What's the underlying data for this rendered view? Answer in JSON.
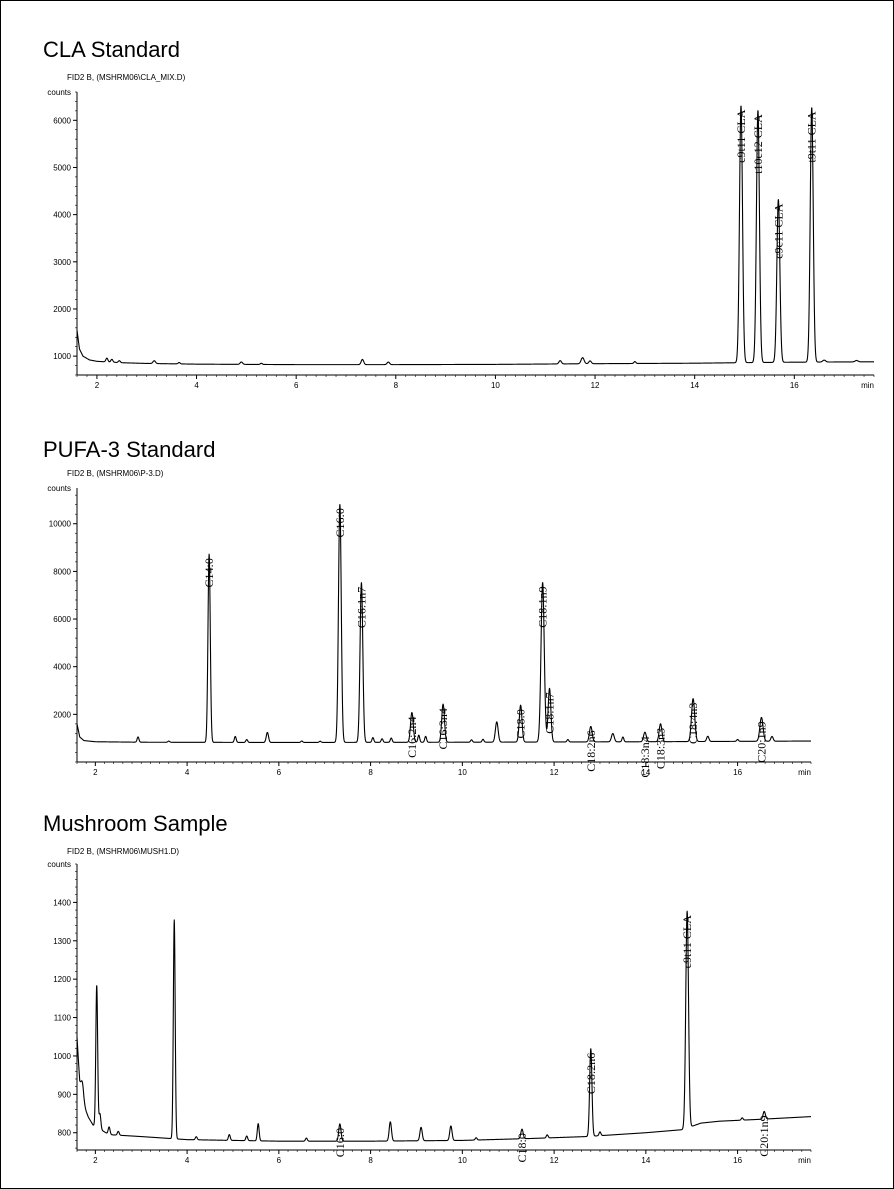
{
  "chart_data": [
    {
      "type": "line",
      "title": "CLA Standard",
      "subtitle": "FID2 B,  (MSHRM06\\CLA_MIX.D)",
      "ylabel": "counts",
      "xlabel": "min",
      "xlim": [
        1.6,
        17.6
      ],
      "ylim": [
        600,
        6600
      ],
      "xticks": [
        2,
        4,
        6,
        8,
        10,
        12,
        14,
        16
      ],
      "yticks": [
        1000,
        2000,
        3000,
        4000,
        5000,
        6000
      ],
      "baseline": [
        [
          1.6,
          1550
        ],
        [
          1.65,
          1150
        ],
        [
          1.72,
          1000
        ],
        [
          1.85,
          920
        ],
        [
          2.0,
          890
        ],
        [
          2.5,
          860
        ],
        [
          3.0,
          845
        ],
        [
          4.0,
          830
        ],
        [
          6.0,
          820
        ],
        [
          8.0,
          820
        ],
        [
          10.0,
          825
        ],
        [
          12.0,
          840
        ],
        [
          14.0,
          850
        ],
        [
          14.85,
          860
        ],
        [
          15.8,
          870
        ],
        [
          16.6,
          875
        ],
        [
          17.6,
          880
        ]
      ],
      "peaks": [
        {
          "rt": 2.2,
          "h": 80,
          "w": 0.02
        },
        {
          "rt": 2.3,
          "h": 60,
          "w": 0.02
        },
        {
          "rt": 2.45,
          "h": 40,
          "w": 0.02
        },
        {
          "rt": 3.15,
          "h": 60,
          "w": 0.025
        },
        {
          "rt": 3.65,
          "h": 30,
          "w": 0.02
        },
        {
          "rt": 4.9,
          "h": 50,
          "w": 0.025
        },
        {
          "rt": 5.3,
          "h": 25,
          "w": 0.02
        },
        {
          "rt": 7.33,
          "h": 110,
          "w": 0.025
        },
        {
          "rt": 7.85,
          "h": 55,
          "w": 0.025
        },
        {
          "rt": 11.3,
          "h": 70,
          "w": 0.025
        },
        {
          "rt": 11.75,
          "h": 130,
          "w": 0.03
        },
        {
          "rt": 11.9,
          "h": 60,
          "w": 0.025
        },
        {
          "rt": 12.8,
          "h": 40,
          "w": 0.02
        },
        {
          "rt": 14.93,
          "h": 5450,
          "w": 0.03,
          "label": "c9t11 CLA"
        },
        {
          "rt": 15.27,
          "h": 5350,
          "w": 0.03,
          "label": "t10c12 CLA"
        },
        {
          "rt": 15.68,
          "h": 3450,
          "w": 0.03,
          "label": "c9c11 CLA"
        },
        {
          "rt": 16.35,
          "h": 5400,
          "w": 0.03,
          "label": "t9t11 CLA"
        },
        {
          "rt": 16.6,
          "h": 40,
          "w": 0.03
        },
        {
          "rt": 17.25,
          "h": 30,
          "w": 0.03
        }
      ]
    },
    {
      "type": "line",
      "title": "PUFA-3 Standard",
      "subtitle": "FID2 B,  (MSHRM06\\P-3.D)",
      "ylabel": "counts",
      "xlabel": "min",
      "xlim": [
        1.6,
        17.6
      ],
      "ylim": [
        0,
        11500
      ],
      "xticks": [
        2,
        4,
        6,
        8,
        10,
        12,
        14,
        16
      ],
      "yticks": [
        2000,
        4000,
        6000,
        8000,
        10000
      ],
      "baseline": [
        [
          1.6,
          1600
        ],
        [
          1.66,
          1050
        ],
        [
          1.75,
          900
        ],
        [
          2.0,
          850
        ],
        [
          3.0,
          830
        ],
        [
          6.0,
          820
        ],
        [
          10.0,
          830
        ],
        [
          14.0,
          850
        ],
        [
          17.6,
          880
        ]
      ],
      "peaks": [
        {
          "rt": 2.93,
          "h": 220,
          "w": 0.02
        },
        {
          "rt": 3.6,
          "h": 50,
          "w": 0.02
        },
        {
          "rt": 4.48,
          "h": 7900,
          "w": 0.025,
          "label": "C14:0"
        },
        {
          "rt": 5.05,
          "h": 250,
          "w": 0.02
        },
        {
          "rt": 5.3,
          "h": 120,
          "w": 0.02
        },
        {
          "rt": 5.75,
          "h": 420,
          "w": 0.025
        },
        {
          "rt": 6.5,
          "h": 60,
          "w": 0.02
        },
        {
          "rt": 6.9,
          "h": 50,
          "w": 0.02
        },
        {
          "rt": 7.33,
          "h": 10000,
          "w": 0.03,
          "label": "C16:0"
        },
        {
          "rt": 7.8,
          "h": 6700,
          "w": 0.03,
          "label": "C16:1n7"
        },
        {
          "rt": 8.05,
          "h": 200,
          "w": 0.02
        },
        {
          "rt": 8.25,
          "h": 150,
          "w": 0.02
        },
        {
          "rt": 8.45,
          "h": 180,
          "w": 0.02
        },
        {
          "rt": 8.9,
          "h": 1250,
          "w": 0.03,
          "label": "C16:2n4"
        },
        {
          "rt": 9.05,
          "h": 300,
          "w": 0.02
        },
        {
          "rt": 9.2,
          "h": 250,
          "w": 0.02
        },
        {
          "rt": 9.58,
          "h": 1600,
          "w": 0.03,
          "label": "C16:3n4"
        },
        {
          "rt": 10.2,
          "h": 100,
          "w": 0.02
        },
        {
          "rt": 10.45,
          "h": 120,
          "w": 0.02
        },
        {
          "rt": 10.75,
          "h": 850,
          "w": 0.03
        },
        {
          "rt": 11.27,
          "h": 1550,
          "w": 0.03,
          "label": "C18:0"
        },
        {
          "rt": 11.75,
          "h": 6700,
          "w": 0.035,
          "label": "C18:1n9"
        },
        {
          "rt": 11.9,
          "h": 2250,
          "w": 0.03,
          "label": "C18:1n7"
        },
        {
          "rt": 12.3,
          "h": 100,
          "w": 0.02
        },
        {
          "rt": 12.8,
          "h": 650,
          "w": 0.03,
          "label": "C18:2n6"
        },
        {
          "rt": 13.28,
          "h": 350,
          "w": 0.03
        },
        {
          "rt": 13.5,
          "h": 200,
          "w": 0.02
        },
        {
          "rt": 13.98,
          "h": 400,
          "w": 0.03,
          "label": "C18:3n4"
        },
        {
          "rt": 14.32,
          "h": 750,
          "w": 0.03,
          "label": "C18:3n3"
        },
        {
          "rt": 15.03,
          "h": 1800,
          "w": 0.035,
          "label": "C18:4n3"
        },
        {
          "rt": 15.35,
          "h": 220,
          "w": 0.025
        },
        {
          "rt": 16.0,
          "h": 80,
          "w": 0.02
        },
        {
          "rt": 16.52,
          "h": 1000,
          "w": 0.035,
          "label": "C20:1n9"
        },
        {
          "rt": 16.75,
          "h": 200,
          "w": 0.025
        }
      ]
    },
    {
      "type": "line",
      "title": "Mushroom Sample",
      "subtitle": "FID2 B,  (MSHRM06\\MUSH1.D)",
      "ylabel": "counts",
      "xlabel": "min",
      "xlim": [
        1.6,
        17.6
      ],
      "ylim": [
        755,
        1500
      ],
      "xticks": [
        2,
        4,
        6,
        8,
        10,
        12,
        14,
        16
      ],
      "yticks": [
        800,
        900,
        1000,
        1100,
        1200,
        1300,
        1400
      ],
      "baseline": [
        [
          1.6,
          1050
        ],
        [
          1.66,
          930
        ],
        [
          1.75,
          870
        ],
        [
          1.85,
          840
        ],
        [
          1.95,
          820
        ],
        [
          2.3,
          795
        ],
        [
          3.0,
          790
        ],
        [
          4.0,
          782
        ],
        [
          6.0,
          778
        ],
        [
          8.0,
          778
        ],
        [
          10.0,
          780
        ],
        [
          11.5,
          785
        ],
        [
          12.7,
          790
        ],
        [
          14.0,
          800
        ],
        [
          14.8,
          808
        ],
        [
          15.2,
          825
        ],
        [
          15.6,
          830
        ],
        [
          16.5,
          835
        ],
        [
          17.6,
          842
        ]
      ],
      "peaks": [
        {
          "rt": 1.72,
          "h": 40,
          "w": 0.03
        },
        {
          "rt": 2.03,
          "h": 370,
          "w": 0.02
        },
        {
          "rt": 2.1,
          "h": 40,
          "w": 0.02
        },
        {
          "rt": 2.3,
          "h": 20,
          "w": 0.02
        },
        {
          "rt": 2.5,
          "h": 10,
          "w": 0.02
        },
        {
          "rt": 3.72,
          "h": 570,
          "w": 0.02
        },
        {
          "rt": 4.2,
          "h": 8,
          "w": 0.02
        },
        {
          "rt": 4.92,
          "h": 15,
          "w": 0.02
        },
        {
          "rt": 5.3,
          "h": 12,
          "w": 0.02
        },
        {
          "rt": 5.55,
          "h": 45,
          "w": 0.02
        },
        {
          "rt": 6.6,
          "h": 8,
          "w": 0.02
        },
        {
          "rt": 7.33,
          "h": 45,
          "w": 0.025,
          "label": "C16:0"
        },
        {
          "rt": 8.43,
          "h": 50,
          "w": 0.025
        },
        {
          "rt": 9.1,
          "h": 35,
          "w": 0.025
        },
        {
          "rt": 9.75,
          "h": 38,
          "w": 0.025
        },
        {
          "rt": 10.3,
          "h": 6,
          "w": 0.02
        },
        {
          "rt": 11.3,
          "h": 25,
          "w": 0.025,
          "label": "C18:0"
        },
        {
          "rt": 11.85,
          "h": 8,
          "w": 0.02
        },
        {
          "rt": 12.8,
          "h": 228,
          "w": 0.025,
          "label": "C18:2n6"
        },
        {
          "rt": 13.0,
          "h": 10,
          "w": 0.02
        },
        {
          "rt": 14.9,
          "h": 565,
          "w": 0.03,
          "label": "c9t11 CLA"
        },
        {
          "rt": 16.1,
          "h": 6,
          "w": 0.02
        },
        {
          "rt": 16.58,
          "h": 20,
          "w": 0.025,
          "label": "C20:1n9"
        }
      ]
    }
  ]
}
